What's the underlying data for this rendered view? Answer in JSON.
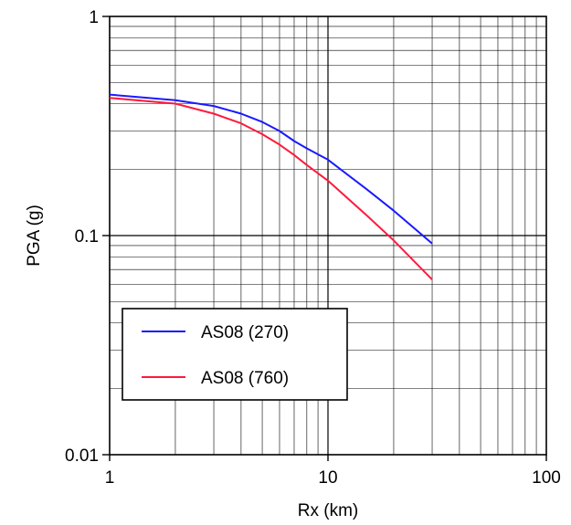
{
  "chart_data": {
    "type": "line",
    "xlabel": "Rx (km)",
    "ylabel": "PGA (g)",
    "xscale": "log",
    "yscale": "log",
    "xlim": [
      1,
      100
    ],
    "ylim": [
      0.01,
      1
    ],
    "grid": true,
    "legend_position": "bottom-left",
    "x_tick_labels": [
      "1",
      "10",
      "100"
    ],
    "y_tick_labels": [
      "0.01",
      "0.1",
      "1"
    ],
    "series": [
      {
        "name": "AS08 (270)",
        "color": "#1a1aff",
        "x": [
          1,
          2,
          3,
          4,
          5,
          6,
          7,
          8,
          10,
          15,
          20,
          30
        ],
        "y": [
          0.44,
          0.415,
          0.39,
          0.36,
          0.33,
          0.3,
          0.27,
          0.25,
          0.222,
          0.163,
          0.13,
          0.092
        ]
      },
      {
        "name": "AS08 (760)",
        "color": "#ff1a3c",
        "x": [
          1,
          2,
          3,
          4,
          5,
          6,
          7,
          8,
          10,
          15,
          20,
          30
        ],
        "y": [
          0.425,
          0.4,
          0.36,
          0.325,
          0.29,
          0.26,
          0.233,
          0.21,
          0.178,
          0.124,
          0.095,
          0.063
        ]
      }
    ]
  }
}
